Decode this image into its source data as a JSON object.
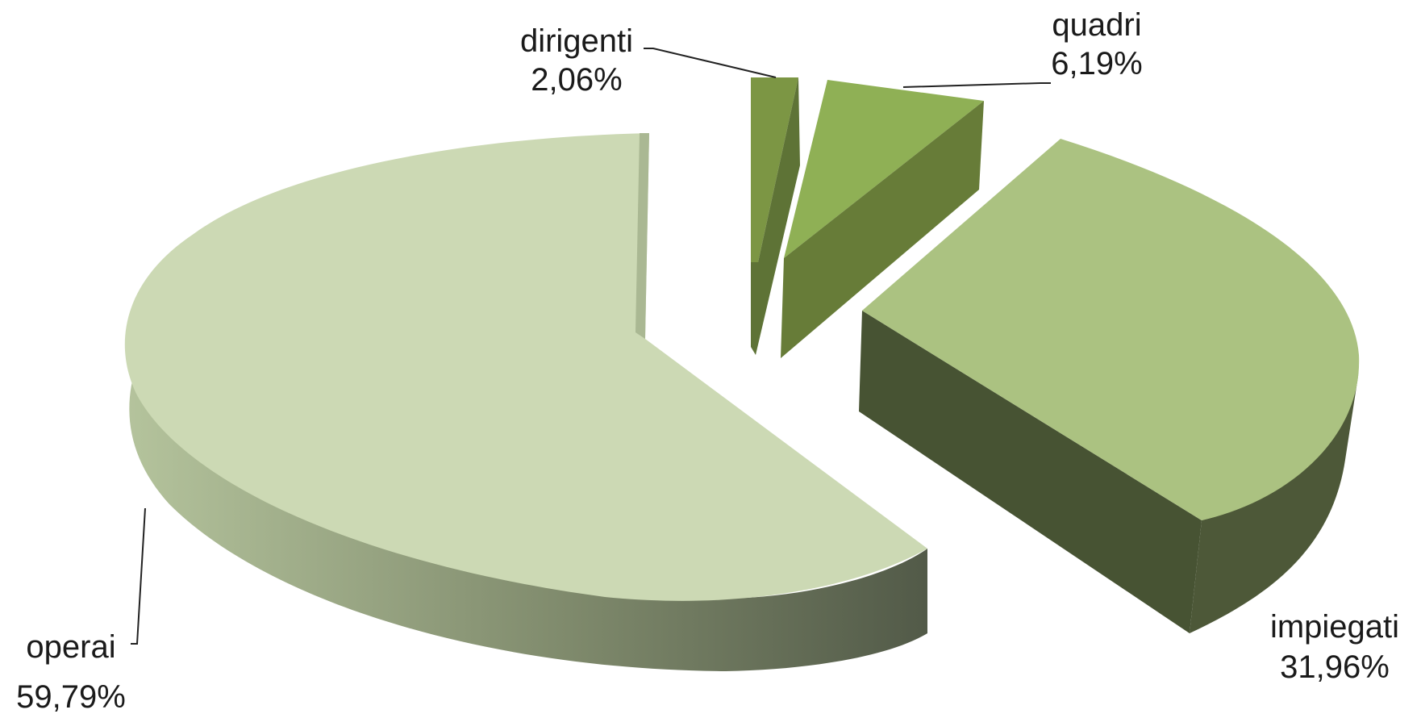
{
  "chart_data": {
    "type": "pie",
    "style": "3d-exploded",
    "title": "",
    "slices": [
      {
        "label": "operai",
        "value_label": "59,79%",
        "value": 59.79,
        "color": "#ccd9b4"
      },
      {
        "label": "impiegati",
        "value_label": "31,96%",
        "value": 31.96,
        "color": "#abc281"
      },
      {
        "label": "dirigenti",
        "value_label": "2,06%",
        "value": 2.06,
        "color": "#7c9644"
      },
      {
        "label": "quadri",
        "value_label": "6,19%",
        "value": 6.19,
        "color": "#8fb055"
      }
    ],
    "legend": "none"
  }
}
